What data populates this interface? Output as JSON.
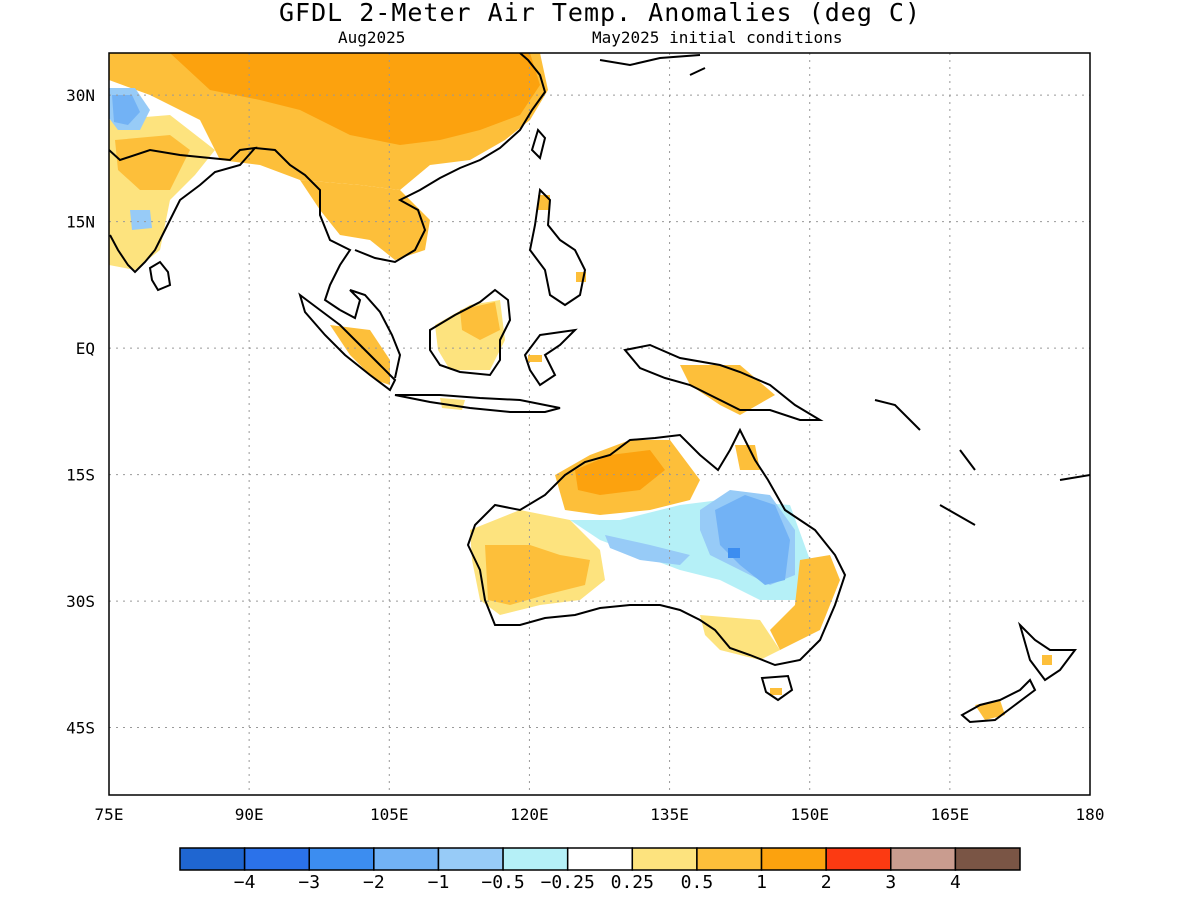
{
  "title": "GFDL 2-Meter Air Temp. Anomalies (deg C)",
  "subtitle_left": "Aug2025",
  "subtitle_right": "May2025 initial conditions",
  "map": {
    "lon_range": [
      75,
      180
    ],
    "lat_range": [
      -53,
      35
    ],
    "x_ticks": [
      "75E",
      "90E",
      "105E",
      "120E",
      "135E",
      "150E",
      "165E",
      "180"
    ],
    "y_ticks": [
      "30N",
      "15N",
      "EQ",
      "15S",
      "30S",
      "45S"
    ],
    "grid": true
  },
  "colorbar": {
    "colors": [
      "#1f66d1",
      "#2b72ea",
      "#3c8df0",
      "#72b2f5",
      "#97cbf7",
      "#b5f0f7",
      "#ffffff",
      "#fde37e",
      "#fdbf3a",
      "#fca20e",
      "#fc3a12",
      "#c99c8f",
      "#7a5545"
    ],
    "labels": [
      "-4",
      "-3",
      "-2",
      "-1",
      "-0.5",
      "-0.25",
      "0.25",
      "0.5",
      "1",
      "2",
      "3",
      "4"
    ]
  },
  "regions": [
    {
      "name": "china",
      "level": "1"
    },
    {
      "name": "india",
      "level": "0.5"
    },
    {
      "name": "indochina",
      "level": "1"
    },
    {
      "name": "borneo",
      "level": "0.5"
    },
    {
      "name": "north-australia",
      "level": "1"
    },
    {
      "name": "east-australia",
      "level": "-1"
    },
    {
      "name": "west-australia",
      "level": "0.5"
    },
    {
      "name": "new-guinea",
      "level": "1"
    }
  ]
}
